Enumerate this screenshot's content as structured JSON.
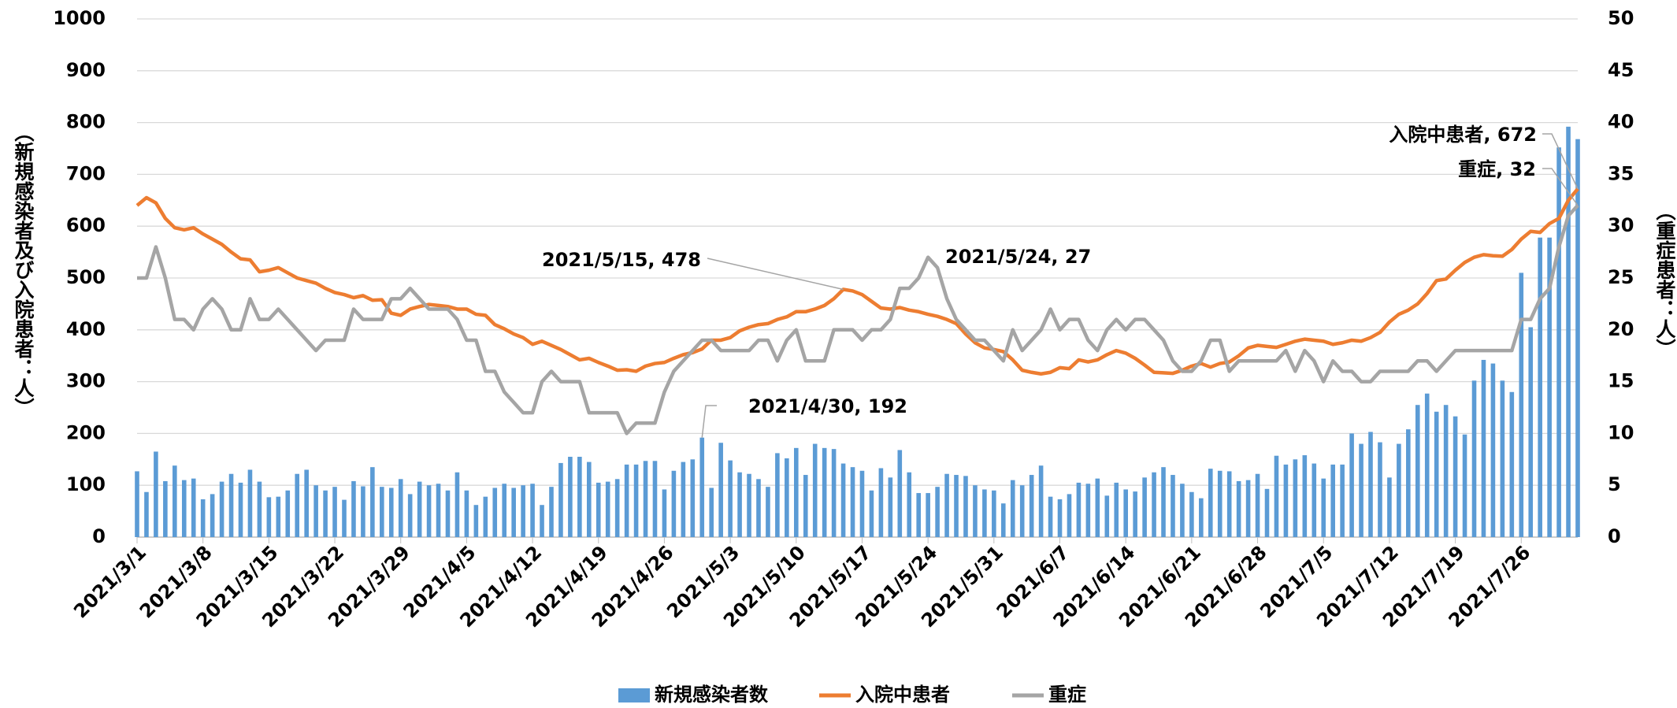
{
  "chart_data": {
    "type": "bar_line",
    "categories": [
      "2021/3/1",
      null,
      null,
      null,
      null,
      null,
      null,
      "2021/3/8",
      null,
      null,
      null,
      null,
      null,
      null,
      "2021/3/15",
      null,
      null,
      null,
      null,
      null,
      null,
      "2021/3/22",
      null,
      null,
      null,
      null,
      null,
      null,
      "2021/3/29",
      null,
      null,
      null,
      null,
      null,
      null,
      "2021/4/5",
      null,
      null,
      null,
      null,
      null,
      null,
      "2021/4/12",
      null,
      null,
      null,
      null,
      null,
      null,
      "2021/4/19",
      null,
      null,
      null,
      null,
      null,
      null,
      "2021/4/26",
      null,
      null,
      null,
      null,
      null,
      null,
      "2021/5/3",
      null,
      null,
      null,
      null,
      null,
      null,
      "2021/5/10",
      null,
      null,
      null,
      null,
      null,
      null,
      "2021/5/17",
      null,
      null,
      null,
      null,
      null,
      null,
      "2021/5/24",
      null,
      null,
      null,
      null,
      null,
      null,
      "2021/5/31",
      null,
      null,
      null,
      null,
      null,
      null,
      "2021/6/7",
      null,
      null,
      null,
      null,
      null,
      null,
      "2021/6/14",
      null,
      null,
      null,
      null,
      null,
      null,
      "2021/6/21",
      null,
      null,
      null,
      null,
      null,
      null,
      "2021/6/28",
      null,
      null,
      null,
      null,
      null,
      null,
      "2021/7/5",
      null,
      null,
      null,
      null,
      null,
      null,
      "2021/7/12",
      null,
      null,
      null,
      null,
      null,
      null,
      "2021/7/19",
      null,
      null,
      null,
      null,
      null,
      null,
      "2021/7/26",
      null,
      null,
      null,
      null,
      null,
      null
    ],
    "series": [
      {
        "name": "新規感染者数",
        "kind": "bar",
        "color": "#5b9bd5",
        "values": [
          127,
          87,
          165,
          108,
          138,
          110,
          113,
          73,
          83,
          107,
          122,
          105,
          130,
          107,
          77,
          78,
          90,
          122,
          130,
          100,
          90,
          97,
          72,
          108,
          98,
          135,
          97,
          95,
          112,
          83,
          107,
          100,
          103,
          90,
          125,
          90,
          62,
          78,
          95,
          103,
          95,
          100,
          103,
          62,
          97,
          143,
          155,
          155,
          145,
          105,
          107,
          112,
          140,
          140,
          147,
          147,
          92,
          128,
          145,
          150,
          192,
          95,
          182,
          148,
          125,
          122,
          112,
          97,
          162,
          152,
          172,
          120,
          180,
          172,
          170,
          142,
          135,
          128,
          90,
          133,
          115,
          168,
          125,
          85,
          85,
          97,
          122,
          120,
          118,
          100,
          92,
          90,
          65,
          110,
          100,
          120,
          138,
          78,
          73,
          83,
          105,
          103,
          113,
          80,
          105,
          92,
          88,
          115,
          125,
          135,
          120,
          103,
          87,
          75,
          132,
          128,
          127,
          108,
          110,
          122,
          93,
          157,
          140,
          150,
          158,
          142,
          113,
          140,
          140,
          200,
          180,
          203,
          183,
          115,
          180,
          208,
          255,
          277,
          242,
          255,
          233,
          198,
          302,
          342,
          335,
          302,
          280,
          510,
          405,
          578,
          578,
          752,
          792,
          768
        ]
      },
      {
        "name": "入院中患者",
        "kind": "line",
        "color": "#ed7d31",
        "values": [
          640,
          655,
          645,
          615,
          597,
          593,
          597,
          585,
          575,
          565,
          550,
          537,
          535,
          512,
          515,
          520,
          510,
          500,
          495,
          490,
          480,
          472,
          468,
          462,
          466,
          457,
          458,
          432,
          428,
          440,
          445,
          449,
          447,
          445,
          440,
          440,
          430,
          428,
          410,
          402,
          392,
          385,
          372,
          378,
          370,
          362,
          352,
          342,
          345,
          337,
          330,
          322,
          323,
          320,
          330,
          335,
          337,
          345,
          352,
          356,
          363,
          380,
          380,
          385,
          398,
          405,
          410,
          412,
          420,
          425,
          435,
          435,
          440,
          447,
          460,
          478,
          475,
          468,
          455,
          442,
          440,
          443,
          438,
          435,
          430,
          426,
          420,
          412,
          392,
          375,
          365,
          362,
          358,
          342,
          322,
          318,
          315,
          318,
          327,
          325,
          342,
          338,
          342,
          352,
          360,
          355,
          345,
          332,
          318,
          317,
          316,
          322,
          330,
          335,
          328,
          335,
          338,
          350,
          365,
          370,
          368,
          366,
          372,
          378,
          382,
          380,
          378,
          372,
          375,
          380,
          378,
          385,
          395,
          415,
          430,
          438,
          450,
          470,
          495,
          498,
          515,
          530,
          540,
          545,
          543,
          542,
          555,
          575,
          590,
          588,
          605,
          615,
          650,
          672
        ]
      },
      {
        "name": "重症",
        "kind": "line",
        "axis": "y2",
        "color": "#a5a5a5",
        "values": [
          25,
          25,
          28,
          25,
          21,
          21,
          20,
          22,
          23,
          22,
          20,
          20,
          23,
          21,
          21,
          22,
          21,
          20,
          19,
          18,
          19,
          19,
          19,
          22,
          21,
          21,
          21,
          23,
          23,
          24,
          23,
          22,
          22,
          22,
          21,
          19,
          19,
          16,
          16,
          14,
          13,
          12,
          12,
          15,
          16,
          15,
          15,
          15,
          12,
          12,
          12,
          12,
          10,
          11,
          11,
          11,
          14,
          16,
          17,
          18,
          19,
          19,
          18,
          18,
          18,
          18,
          19,
          19,
          17,
          19,
          20,
          17,
          17,
          17,
          20,
          20,
          20,
          19,
          20,
          20,
          21,
          24,
          24,
          25,
          27,
          26,
          23,
          21,
          20,
          19,
          19,
          18,
          17,
          20,
          18,
          19,
          20,
          22,
          20,
          21,
          21,
          19,
          18,
          20,
          21,
          20,
          21,
          21,
          20,
          19,
          17,
          16,
          16,
          17,
          19,
          19,
          16,
          17,
          17,
          17,
          17,
          17,
          18,
          16,
          18,
          17,
          15,
          17,
          16,
          16,
          15,
          15,
          16,
          16,
          16,
          16,
          17,
          17,
          16,
          17,
          18,
          18,
          18,
          18,
          18,
          18,
          18,
          21,
          21,
          23,
          24,
          28,
          31,
          32
        ]
      }
    ],
    "ylim": [
      0,
      1000
    ],
    "yticks": [
      0,
      100,
      200,
      300,
      400,
      500,
      600,
      700,
      800,
      900,
      1000
    ],
    "y2lim": [
      0,
      50
    ],
    "y2ticks": [
      0,
      5,
      10,
      15,
      20,
      25,
      30,
      35,
      40,
      45,
      50
    ],
    "ylabel": "（新規感染者及び入院患者：人）",
    "y2label": "（重症患者：人）",
    "annotations": [
      "2021/5/15, 478",
      "2021/5/24, 27",
      "2021/4/30, 192",
      "入院中患者, 672",
      "重症, 32"
    ],
    "grid": true,
    "legend": "bottom"
  }
}
